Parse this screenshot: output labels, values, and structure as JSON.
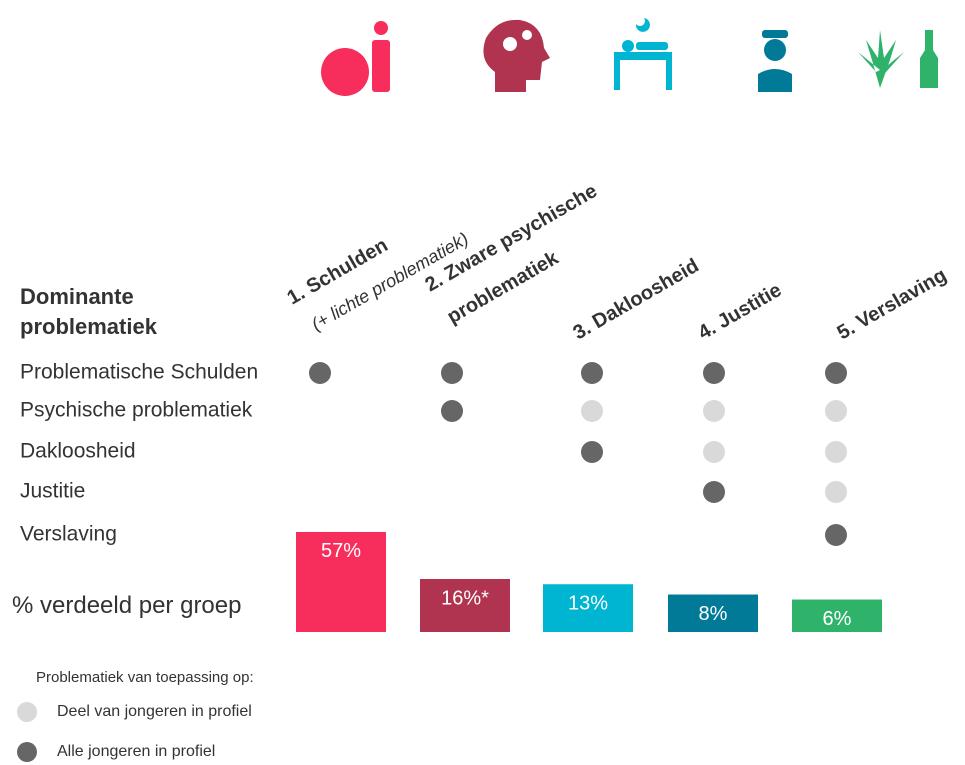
{
  "title": [
    "Dominante",
    "problematiek"
  ],
  "groups": [
    {
      "name": [
        "1. Schulden"
      ],
      "note": "(+ lichte problematiek)",
      "value": 57,
      "value_label": "57%",
      "color": "#f72d5c"
    },
    {
      "name": [
        "2. Zware psychische",
        "problematiek"
      ],
      "value": 16,
      "value_label": "16%*",
      "color": "#b0344f"
    },
    {
      "name": [
        "3. Dakloosheid"
      ],
      "value": 13,
      "value_label": "13%",
      "color": "#00b5d1"
    },
    {
      "name": [
        "4. Justitie"
      ],
      "value": 8,
      "value_label": "8%",
      "color": "#007a96"
    },
    {
      "name": [
        "5. Verslaving"
      ],
      "value": 6,
      "value_label": "6%",
      "color": "#2fb36a"
    }
  ],
  "rows": [
    {
      "label": "Problematische Schulden",
      "cells": [
        "#666666",
        "#666666",
        "#666666",
        "#666666",
        "#666666"
      ]
    },
    {
      "label": "Psychische problematiek",
      "cells": [
        null,
        "#666666",
        "#d9d9d9",
        "#d9d9d9",
        "#d9d9d9"
      ]
    },
    {
      "label": "Dakloosheid",
      "cells": [
        null,
        null,
        "#666666",
        "#d9d9d9",
        "#d9d9d9"
      ]
    },
    {
      "label": "Justitie",
      "cells": [
        null,
        null,
        null,
        "#666666",
        "#d9d9d9"
      ]
    },
    {
      "label": "Verslaving",
      "cells": [
        null,
        null,
        null,
        null,
        "#666666"
      ]
    }
  ],
  "total_label": "% verdeeld per groep",
  "legend": {
    "title": "Problematiek van toepassing op:",
    "items": [
      {
        "label": "Deel van jongeren in profiel",
        "color": "#d9d9d9"
      },
      {
        "label": "Alle jongeren in profiel",
        "color": "#666666"
      }
    ]
  }
}
